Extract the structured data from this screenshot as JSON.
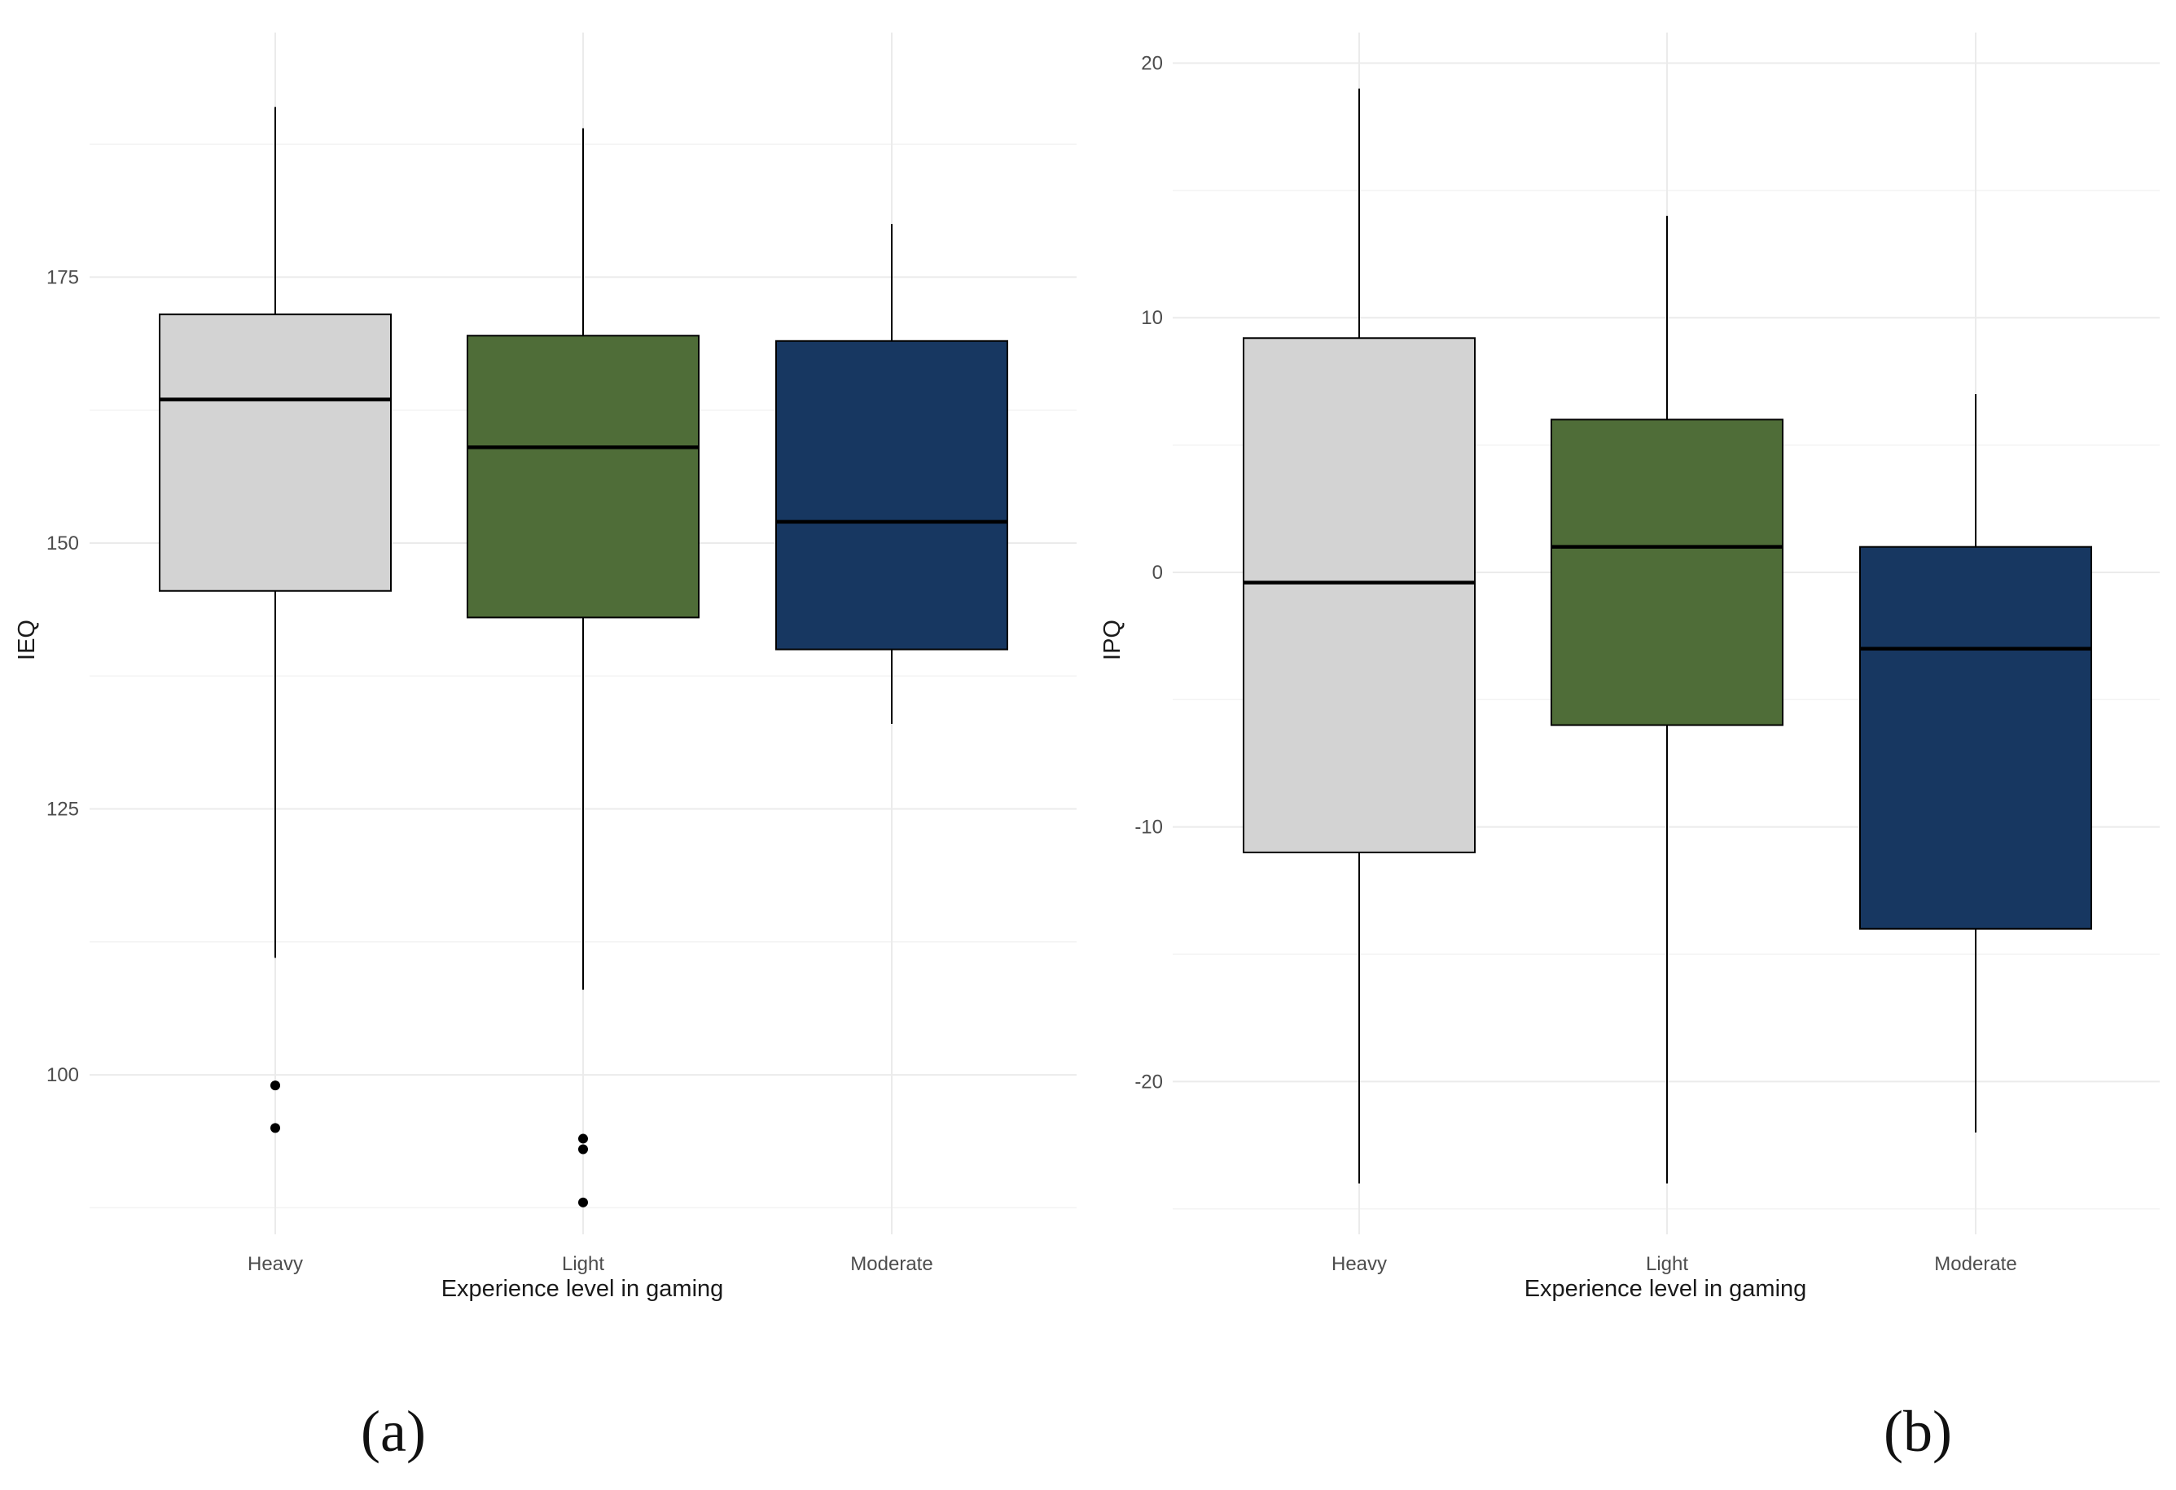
{
  "chart_data": [
    {
      "type": "boxplot",
      "panel_label": "(a)",
      "xlabel": "Experience level in gaming",
      "ylabel": "IEQ",
      "categories": [
        "Heavy",
        "Light",
        "Moderate"
      ],
      "ylim": [
        85,
        198
      ],
      "yticks": [
        100,
        125,
        150,
        175
      ],
      "yticks_minor": [
        87.5,
        112.5,
        137.5,
        162.5,
        187.5
      ],
      "boxes": [
        {
          "category": "Heavy",
          "whisker_low": 111,
          "q1": 145.5,
          "median": 163.5,
          "q3": 171.5,
          "whisker_high": 191,
          "outliers": [
            99,
            95
          ]
        },
        {
          "category": "Light",
          "whisker_low": 108,
          "q1": 143,
          "median": 159,
          "q3": 169.5,
          "whisker_high": 189,
          "outliers": [
            94,
            93,
            88
          ]
        },
        {
          "category": "Moderate",
          "whisker_low": 133,
          "q1": 140,
          "median": 152,
          "q3": 169,
          "whisker_high": 180,
          "outliers": []
        }
      ]
    },
    {
      "type": "boxplot",
      "panel_label": "(b)",
      "xlabel": "Experience level in gaming",
      "ylabel": "IPQ",
      "categories": [
        "Heavy",
        "Light",
        "Moderate"
      ],
      "ylim": [
        -26,
        21.2
      ],
      "yticks": [
        -20,
        -10,
        0,
        10,
        20
      ],
      "yticks_minor": [
        -25,
        -15,
        -5,
        5,
        15
      ],
      "boxes": [
        {
          "category": "Heavy",
          "whisker_low": -24,
          "q1": -11,
          "median": -0.4,
          "q3": 9.2,
          "whisker_high": 19,
          "outliers": []
        },
        {
          "category": "Light",
          "whisker_low": -24,
          "q1": -6,
          "median": 1,
          "q3": 6,
          "whisker_high": 14,
          "outliers": []
        },
        {
          "category": "Moderate",
          "whisker_low": -22,
          "q1": -14,
          "median": -3,
          "q3": 1,
          "whisker_high": 7,
          "outliers": []
        }
      ]
    }
  ],
  "colors": {
    "Heavy": "#d3d3d3",
    "Light": "#4f6d38",
    "Moderate": "#173761",
    "outline": "#000000"
  }
}
